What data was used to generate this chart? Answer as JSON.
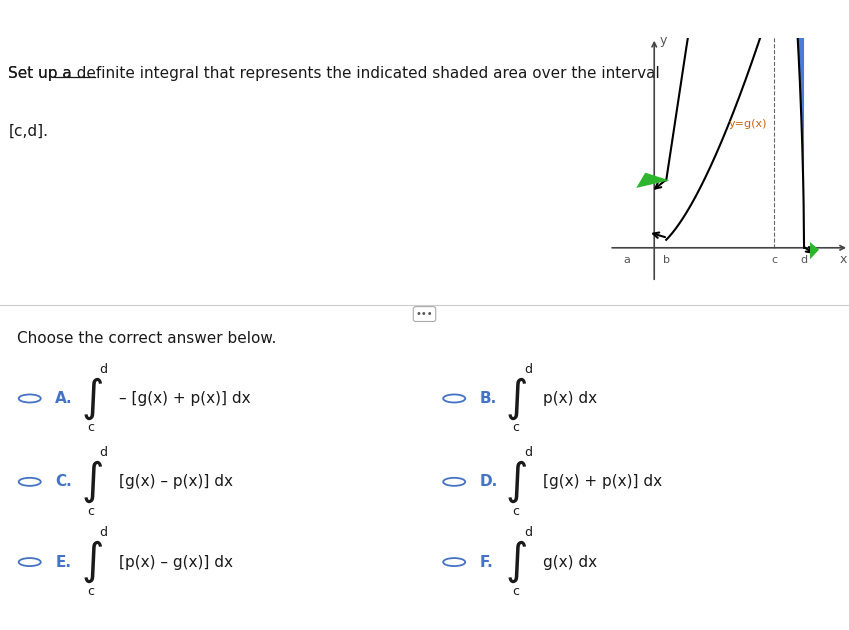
{
  "bg_color": "#ffffff",
  "header_color": "#8B1A2A",
  "title_line1": "Set up a definite integral that represents the indicated shaded area over the interval",
  "title_line2": "[c,d].",
  "title_color": "#1a1a1a",
  "choose_text": "Choose the correct answer below.",
  "plot_color_blue": "#3b6fd4",
  "plot_color_green": "#2db52d",
  "text_color_orange": "#c8640a",
  "text_color_blue": "#4472c4",
  "text_color_dark": "#2c2c6c",
  "label_letters": [
    "A.",
    "B.",
    "C.",
    "D.",
    "E.",
    "F."
  ],
  "formulas_left": [
    "– [g(x) + p(x)] dx",
    "[g(x) – p(x)] dx",
    "[p(x) – g(x)] dx"
  ],
  "formulas_right": [
    "p(x) dx",
    "[g(x) + p(x)] dx",
    "g(x) dx"
  ]
}
